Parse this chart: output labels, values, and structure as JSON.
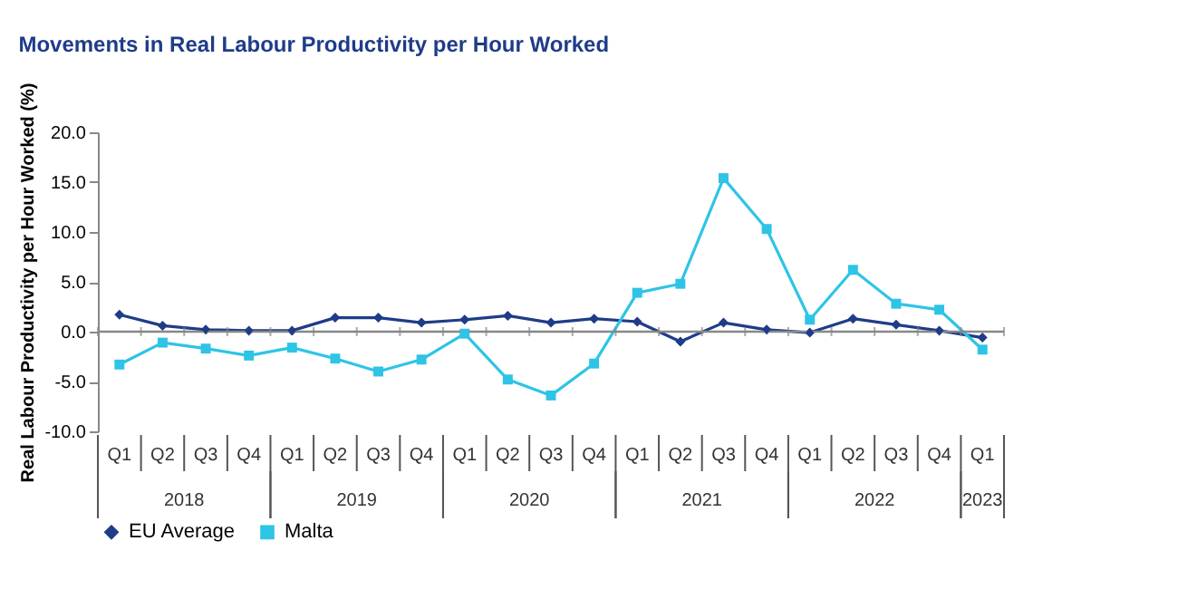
{
  "chart_data": {
    "type": "line",
    "title": "Movements in Real Labour Productivity per Hour Worked",
    "ylabel": "Real Labour Productivity per Hour Worked (%)",
    "categories": [
      "Q1",
      "Q2",
      "Q3",
      "Q4",
      "Q1",
      "Q2",
      "Q3",
      "Q4",
      "Q1",
      "Q2",
      "Q3",
      "Q4",
      "Q1",
      "Q2",
      "Q3",
      "Q4",
      "Q1",
      "Q2",
      "Q3",
      "Q4",
      "Q1"
    ],
    "annotations": [
      "2018",
      "2019",
      "2020",
      "2021",
      "2022",
      "2023"
    ],
    "series": [
      {
        "name": "EU Average",
        "color": "#1f3c88",
        "marker": "diamond",
        "values": [
          1.7,
          0.6,
          0.2,
          0.1,
          0.1,
          1.4,
          1.4,
          0.9,
          1.2,
          1.6,
          0.9,
          1.3,
          1.0,
          -1.0,
          0.9,
          0.2,
          -0.1,
          1.3,
          0.7,
          0.1,
          -0.6
        ]
      },
      {
        "name": "Malta",
        "color": "#2ec4e6",
        "marker": "square",
        "values": [
          -3.3,
          -1.1,
          -1.7,
          -2.4,
          -1.6,
          -2.7,
          -4.0,
          -2.8,
          -0.2,
          -4.8,
          -6.4,
          -3.2,
          3.9,
          4.8,
          15.4,
          10.3,
          1.2,
          6.2,
          2.8,
          2.2,
          -1.8
        ]
      }
    ],
    "ylim": [
      -10,
      20
    ],
    "yticks": [
      {
        "value": -10,
        "label": "-10.0"
      },
      {
        "value": -5,
        "label": "-5.0"
      },
      {
        "value": 0,
        "label": "0.0"
      },
      {
        "value": 5,
        "label": "5.0"
      },
      {
        "value": 10,
        "label": "10.0"
      },
      {
        "value": 15,
        "label": "15.0"
      },
      {
        "value": 20,
        "label": "20.0"
      }
    ],
    "ref_lines": [
      {
        "axis": "y",
        "value": 0,
        "color": "#888888"
      }
    ],
    "grid": false,
    "legend": "bottom",
    "line_style": "solid"
  }
}
